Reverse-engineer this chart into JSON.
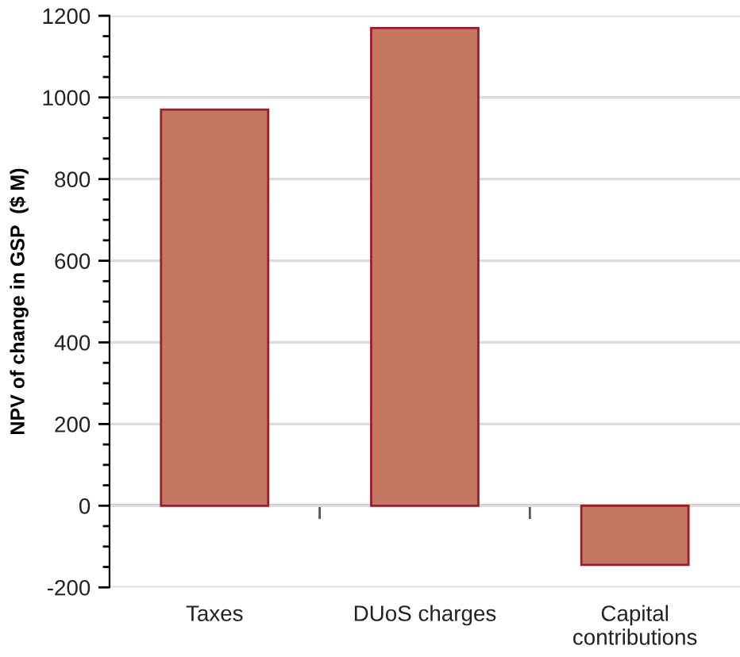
{
  "chart_data": {
    "type": "bar",
    "ylabel": "NPV of change in GSP  ($ M)",
    "categories": [
      "Taxes",
      "DUoS charges",
      "Capital\ncontributions"
    ],
    "values": [
      970,
      1170,
      -145
    ],
    "color": "#c47862",
    "ylim": [
      -200,
      1200
    ],
    "yticks": [
      -200,
      0,
      200,
      400,
      600,
      800,
      1000,
      1200
    ],
    "grid": "y",
    "legend": false
  }
}
